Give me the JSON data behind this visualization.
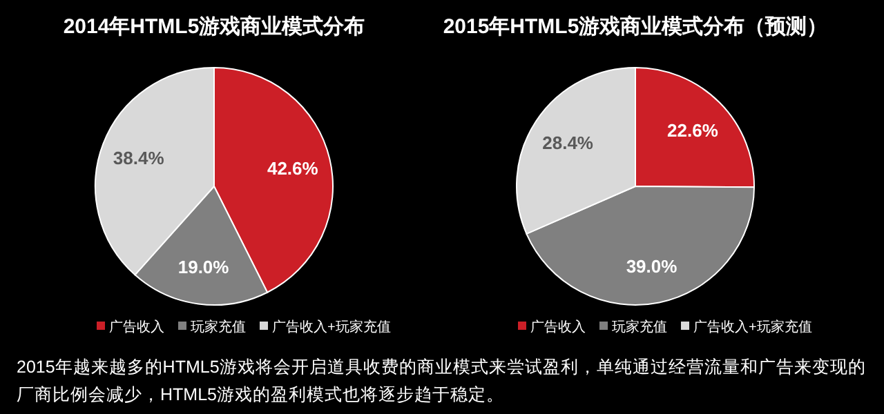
{
  "chart_data": [
    {
      "type": "pie",
      "title": "2014年HTML5游戏商业模式分布",
      "categories": [
        "广告收入",
        "玩家充值",
        "广告收入+玩家充值"
      ],
      "values": [
        42.6,
        19.0,
        38.4
      ],
      "colors": [
        "#cc1f27",
        "#808080",
        "#d9d9d9"
      ],
      "legend": "bottom",
      "value_labels": [
        "42.6%",
        "19.0%",
        "38.4%"
      ],
      "annotations": [
        "2015年越来越多的HTML5游戏将会开启道具收费的商业模式来尝试盈利，单纯通过经营流量和广告来变现的厂商比例会减少，HTML5游戏的盈利模式也将逐步趋于稳定。"
      ]
    },
    {
      "type": "pie",
      "title": "2015年HTML5游戏商业模式分布（预测）",
      "categories": [
        "广告收入",
        "玩家充值",
        "广告收入+玩家充值"
      ],
      "values": [
        22.6,
        39.0,
        28.4
      ],
      "colors": [
        "#cc1f27",
        "#808080",
        "#d9d9d9"
      ],
      "legend": "bottom",
      "value_labels": [
        "22.6%",
        "39.0%",
        "28.4%"
      ]
    }
  ]
}
